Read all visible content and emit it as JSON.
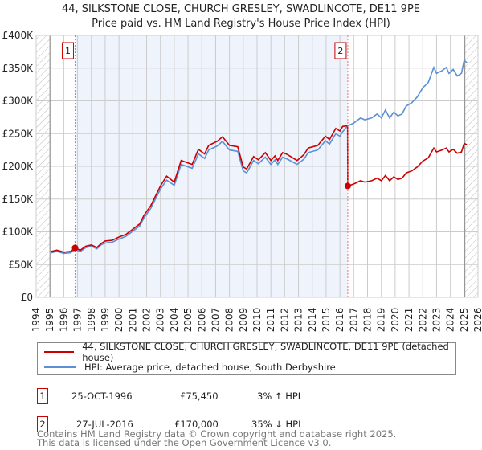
{
  "header": {
    "title": "44, SILKSTONE CLOSE, CHURCH GRESLEY, SWADLINCOTE, DE11 9PE",
    "subtitle": "Price paid vs. HM Land Registry's House Price Index (HPI)"
  },
  "chart_data": {
    "type": "line",
    "title": "44, SILKSTONE CLOSE, CHURCH GRESLEY, SWADLINCOTE, DE11 9PE",
    "subtitle": "Price paid vs. HM Land Registry's House Price Index (HPI)",
    "xlim": [
      1994,
      2026
    ],
    "ylim": [
      0,
      400000
    ],
    "x_ticks": [
      "1994",
      "1995",
      "1996",
      "1997",
      "1998",
      "1999",
      "2000",
      "2001",
      "2002",
      "2003",
      "2004",
      "2005",
      "2006",
      "2007",
      "2008",
      "2009",
      "2010",
      "2011",
      "2012",
      "2013",
      "2014",
      "2015",
      "2016",
      "2017",
      "2018",
      "2019",
      "2020",
      "2021",
      "2022",
      "2023",
      "2024",
      "2025",
      "2026"
    ],
    "y_ticks": [
      {
        "v": 0,
        "label": "£0"
      },
      {
        "v": 50000,
        "label": "£50K"
      },
      {
        "v": 100000,
        "label": "£100K"
      },
      {
        "v": 150000,
        "label": "£150K"
      },
      {
        "v": 200000,
        "label": "£200K"
      },
      {
        "v": 250000,
        "label": "£250K"
      },
      {
        "v": 300000,
        "label": "£300K"
      },
      {
        "v": 350000,
        "label": "£350K"
      },
      {
        "v": 400000,
        "label": "£400K"
      }
    ],
    "grid": true,
    "data_range": [
      1995,
      2025.2
    ],
    "series": [
      {
        "name": "44, SILKSTONE CLOSE, CHURCH GRESLEY, SWADLINCOTE, DE11 9PE (detached house)",
        "color": "#cc0000",
        "x": [
          1995.1,
          1995.5,
          1996,
          1996.5,
          1996.82,
          1997.2,
          1997.6,
          1998,
          1998.4,
          1998.7,
          1999,
          1999.5,
          2000,
          2000.5,
          2001,
          2001.5,
          2001.8,
          2002.3,
          2003,
          2003.45,
          2004,
          2004.5,
          2005.3,
          2005.75,
          2006.2,
          2006.5,
          2007.1,
          2007.5,
          2008,
          2008.6,
          2009,
          2009.25,
          2009.75,
          2010.1,
          2010.6,
          2011,
          2011.3,
          2011.5,
          2011.85,
          2012.2,
          2012.9,
          2013.4,
          2013.7,
          2014.4,
          2014.95,
          2015.25,
          2015.7,
          2016,
          2016.2,
          2016.56,
          2016.57,
          2017,
          2017.5,
          2017.8,
          2018.3,
          2018.7,
          2019,
          2019.3,
          2019.6,
          2019.9,
          2020.2,
          2020.5,
          2020.8,
          2021.2,
          2021.6,
          2022,
          2022.4,
          2022.8,
          2023,
          2023.4,
          2023.7,
          2023.9,
          2024.2,
          2024.5,
          2024.8,
          2025,
          2025.2
        ],
        "y": [
          70,
          72,
          69,
          70,
          75.45,
          72,
          78,
          80,
          76,
          82,
          86,
          87,
          92,
          96,
          104,
          112,
          125,
          140,
          170,
          185,
          176,
          209,
          203,
          226,
          219,
          232,
          238,
          245,
          232,
          230,
          199,
          196,
          215,
          210,
          221,
          209,
          216,
          209,
          221,
          218,
          209,
          218,
          228,
          232,
          246,
          241,
          258,
          254,
          261,
          262,
          170,
          173,
          178,
          176,
          178,
          182,
          178,
          186,
          178,
          184,
          180,
          182,
          190,
          193,
          199,
          208,
          213,
          228,
          222,
          225,
          228,
          222,
          226,
          220,
          222,
          235,
          233
        ]
      },
      {
        "name": "HPI: Average price, detached house, South Derbyshire",
        "color": "#5b8fd6",
        "x": [
          1995.1,
          1995.5,
          1996,
          1996.5,
          1996.82,
          1997.2,
          1997.6,
          1998,
          1998.4,
          1998.7,
          1999,
          1999.5,
          2000,
          2000.5,
          2001,
          2001.5,
          2001.8,
          2002.3,
          2003,
          2003.45,
          2004,
          2004.5,
          2005.3,
          2005.75,
          2006.2,
          2006.5,
          2007.1,
          2007.5,
          2008,
          2008.6,
          2009,
          2009.25,
          2009.75,
          2010.1,
          2010.6,
          2011,
          2011.3,
          2011.5,
          2011.85,
          2012.2,
          2012.9,
          2013.4,
          2013.7,
          2014.4,
          2014.95,
          2015.25,
          2015.7,
          2016,
          2016.2,
          2016.57,
          2017,
          2017.5,
          2017.8,
          2018.3,
          2018.7,
          2019,
          2019.3,
          2019.6,
          2019.9,
          2020.2,
          2020.5,
          2020.8,
          2021.2,
          2021.6,
          2022,
          2022.4,
          2022.8,
          2023,
          2023.4,
          2023.7,
          2023.9,
          2024.2,
          2024.5,
          2024.8,
          2025,
          2025.2
        ],
        "y": [
          68,
          70,
          67,
          68,
          73,
          70,
          76,
          78,
          74,
          80,
          83,
          84,
          89,
          93,
          101,
          109,
          121,
          136,
          165,
          179,
          171,
          203,
          197,
          219,
          212,
          225,
          231,
          238,
          225,
          223,
          193,
          190,
          209,
          204,
          214,
          203,
          210,
          203,
          214,
          211,
          203,
          211,
          221,
          225,
          239,
          234,
          250,
          246,
          253,
          262,
          266,
          274,
          271,
          274,
          280,
          274,
          286,
          274,
          283,
          277,
          280,
          292,
          297,
          306,
          320,
          328,
          351,
          342,
          346,
          351,
          342,
          348,
          338,
          342,
          362,
          358
        ]
      }
    ],
    "sales": [
      {
        "label": "1",
        "x": 1996.82,
        "y": 75450
      },
      {
        "label": "2",
        "x": 2016.57,
        "y": 170000
      }
    ]
  },
  "legend": {
    "items": [
      {
        "label": "44, SILKSTONE CLOSE, CHURCH GRESLEY, SWADLINCOTE, DE11 9PE (detached house)",
        "color": "#cc0000"
      },
      {
        "label": "HPI: Average price, detached house, South Derbyshire",
        "color": "#5b8fd6"
      }
    ]
  },
  "transactions": [
    {
      "num": "1",
      "date": "25-OCT-1996",
      "price": "£75,450",
      "hpi": "3% ↑ HPI"
    },
    {
      "num": "2",
      "date": "27-JUL-2016",
      "price": "£170,000",
      "hpi": "35% ↓ HPI"
    }
  ],
  "footer": {
    "line1": "Contains HM Land Registry data © Crown copyright and database right 2025.",
    "line2": "This data is licensed under the Open Government Licence v3.0."
  }
}
